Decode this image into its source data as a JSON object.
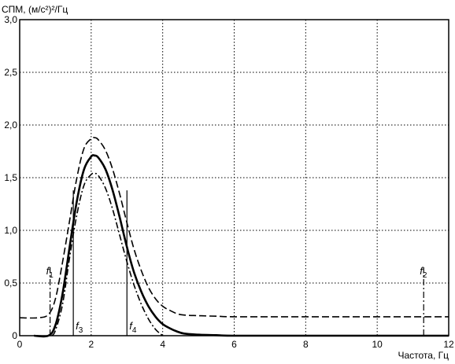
{
  "chart_data": {
    "type": "line",
    "ylabel": "СПМ, (м/с²)²/Гц",
    "xlabel": "Частота, Гц",
    "xlim": [
      0,
      12
    ],
    "ylim": [
      0,
      3.0
    ],
    "x_ticks": [
      "0",
      "2",
      "4",
      "6",
      "8",
      "10",
      "12"
    ],
    "y_ticks": [
      "0",
      "0,5",
      "1,0",
      "1,5",
      "2,0",
      "2,5",
      "3,0"
    ],
    "grid": true,
    "series": [
      {
        "name": "",
        "style": "solid",
        "x": [
          0.4,
          0.8,
          1.0,
          1.2,
          1.4,
          1.6,
          1.8,
          2.0,
          2.1,
          2.2,
          2.4,
          2.6,
          2.8,
          3.0,
          3.2,
          3.4,
          3.6,
          3.8,
          4.0,
          4.2,
          4.4,
          4.6,
          5.0,
          5.5,
          6.0,
          8.0,
          12.0
        ],
        "values": [
          0.0,
          0.0,
          0.1,
          0.4,
          0.85,
          1.28,
          1.58,
          1.7,
          1.71,
          1.69,
          1.58,
          1.38,
          1.12,
          0.84,
          0.6,
          0.42,
          0.28,
          0.18,
          0.11,
          0.07,
          0.04,
          0.02,
          0.01,
          0.005,
          0.0,
          0.0,
          0.0
        ]
      },
      {
        "name": "",
        "style": "dashed",
        "x": [
          0.0,
          0.5,
          0.8,
          1.0,
          1.2,
          1.4,
          1.6,
          1.8,
          2.0,
          2.1,
          2.2,
          2.4,
          2.6,
          2.8,
          3.0,
          3.2,
          3.4,
          3.6,
          3.8,
          4.0,
          4.2,
          4.5,
          5.0,
          5.5,
          6.0,
          8.0,
          10.0,
          12.0
        ],
        "values": [
          0.17,
          0.17,
          0.2,
          0.35,
          0.7,
          1.1,
          1.5,
          1.78,
          1.87,
          1.88,
          1.86,
          1.76,
          1.58,
          1.34,
          1.07,
          0.82,
          0.62,
          0.46,
          0.35,
          0.28,
          0.24,
          0.2,
          0.19,
          0.185,
          0.18,
          0.18,
          0.18,
          0.18
        ]
      },
      {
        "name": "",
        "style": "dash-dot",
        "x": [
          0.9,
          1.0,
          1.2,
          1.4,
          1.6,
          1.8,
          2.0,
          2.1,
          2.2,
          2.4,
          2.6,
          2.8,
          3.0,
          3.2,
          3.4,
          3.6,
          3.8,
          4.0
        ],
        "values": [
          0.0,
          0.05,
          0.3,
          0.75,
          1.15,
          1.43,
          1.53,
          1.54,
          1.52,
          1.4,
          1.2,
          0.95,
          0.7,
          0.48,
          0.3,
          0.16,
          0.06,
          0.0
        ]
      }
    ],
    "markers": [
      {
        "label": "f",
        "sub": "1",
        "x": 0.85,
        "y_top": 0.65,
        "style": "dash-dot"
      },
      {
        "label": "f",
        "sub": "2",
        "x": 11.3,
        "y_top": 0.65,
        "style": "dash-dot"
      },
      {
        "label": "f",
        "sub": "3",
        "x": 1.5,
        "y_top": 1.38,
        "style": "solid"
      },
      {
        "label": "f",
        "sub": "4",
        "x": 3.0,
        "y_top": 1.38,
        "style": "solid"
      }
    ]
  }
}
